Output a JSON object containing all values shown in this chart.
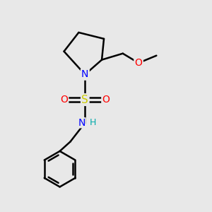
{
  "bg_color": "#e8e8e8",
  "atom_colors": {
    "C": "#000000",
    "N": "#0000ff",
    "O": "#ff0000",
    "S": "#cccc00",
    "H": "#00aaaa"
  },
  "bond_color": "#000000",
  "bond_width": 1.8,
  "figsize": [
    3.0,
    3.0
  ],
  "dpi": 100
}
